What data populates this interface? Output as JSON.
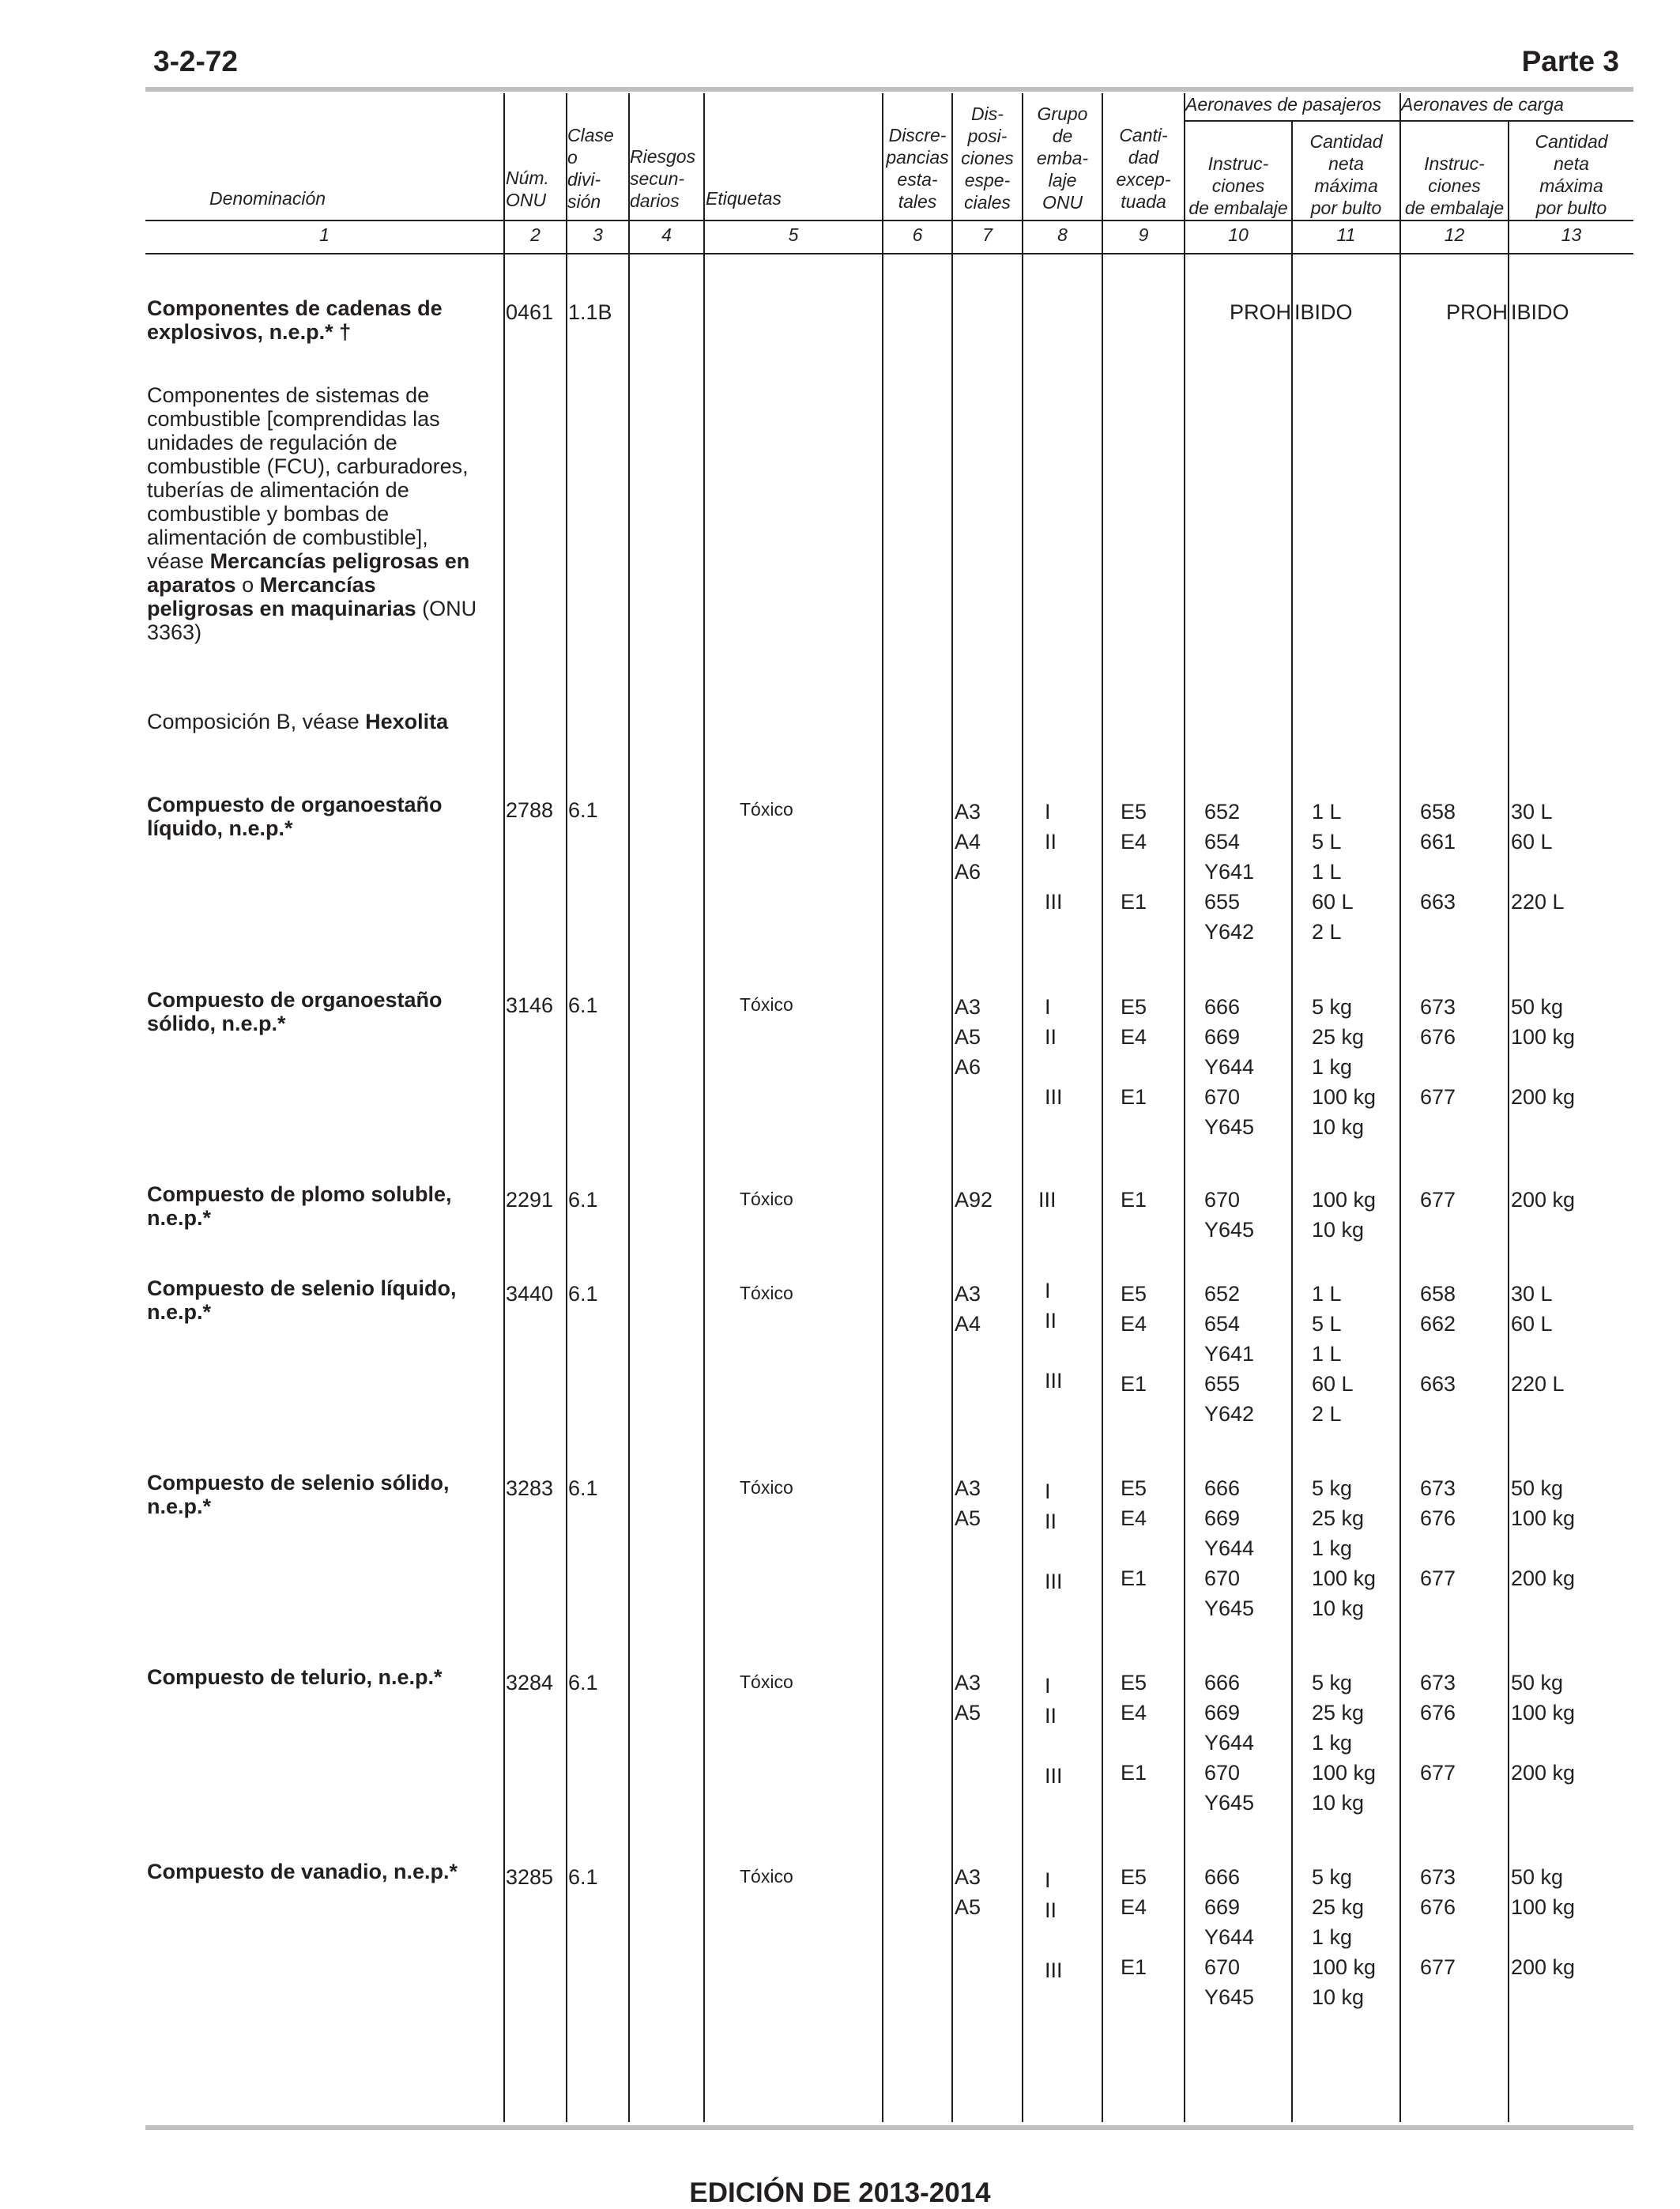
{
  "header": {
    "page_number": "3-2-72",
    "part": "Parte 3"
  },
  "columns": {
    "denominacion": "Denominación",
    "num_onu": [
      "Núm.",
      "ONU"
    ],
    "clase": [
      "Clase",
      "o",
      "divi-",
      "sión"
    ],
    "riesgos": [
      "Riesgos",
      "secun-",
      "darios"
    ],
    "etiquetas": "Etiquetas",
    "discrepancias": [
      "Discre-",
      "pancias",
      "esta-",
      "tales"
    ],
    "disposiciones": [
      "Dis-",
      "posi-",
      "ciones",
      "espe-",
      "ciales"
    ],
    "grupo": [
      "Grupo",
      "de",
      "emba-",
      "laje",
      "ONU"
    ],
    "cantidad_exceptuada": [
      "Canti-",
      "dad",
      "excep-",
      "tuada"
    ],
    "pasajeros_group": "Aeronaves de pasajeros",
    "carga_group": "Aeronaves de carga",
    "instrucciones": [
      "Instruc-",
      "ciones",
      "de embalaje"
    ],
    "cantidad_neta": [
      "Cantidad",
      "neta",
      "máxima",
      "por bulto"
    ],
    "numbers": [
      "1",
      "2",
      "3",
      "4",
      "5",
      "6",
      "7",
      "8",
      "9",
      "10",
      "11",
      "12",
      "13"
    ]
  },
  "entries": {
    "e1": {
      "name": "Componentes de cadenas de explosivos, n.e.p.* †",
      "un": "0461",
      "class": "1.1B",
      "pass_left": "PROH",
      "pass_right": "IBIDO",
      "cargo_left": "PROH",
      "cargo_right": "IBIDO"
    },
    "e2": {
      "t1": "Componentes de sistemas de combustible [comprendidas las unidades de regulación de combustible (FCU), carburadores, tuberías de alimentación de combustible y bombas de alimentación de combustible], véase ",
      "b1": "Mercancías peligrosas en aparatos",
      "t2": " o ",
      "b2": "Mercancías peligrosas en maquinarias",
      "t3": " (ONU 3363)"
    },
    "e3": {
      "t1": "Composición B, véase ",
      "b1": "Hexolita"
    },
    "e4": {
      "name": "Compuesto de organoestaño líquido, n.e.p.*",
      "un": "2788",
      "class": "6.1",
      "label": "Tóxico",
      "sp": "A3\nA4\nA6",
      "pg": "I\nII\n\nIII",
      "eq": "E5\nE4\n\nE1",
      "pi": "652\n654\nY641\n655\nY642",
      "qty": "1 L\n5 L\n1 L\n60 L\n2 L",
      "cpi": "658\n661\n\n663",
      "cqty": "30 L\n60 L\n\n220 L"
    },
    "e5": {
      "name": "Compuesto de organoestaño sólido, n.e.p.*",
      "un": "3146",
      "class": "6.1",
      "label": "Tóxico",
      "sp": "A3\nA5\nA6",
      "pg": "I\nII\n\nIII",
      "eq": "E5\nE4\n\nE1",
      "pi": "666\n669\nY644\n670\nY645",
      "qty": "5 kg\n25 kg\n1 kg\n100 kg\n10 kg",
      "cpi": "673\n676\n\n677",
      "cqty": "50 kg\n100 kg\n\n200 kg"
    },
    "e6": {
      "name": "Compuesto de plomo soluble, n.e.p.*",
      "un": "2291",
      "class": "6.1",
      "label": "Tóxico",
      "sp": "A92",
      "pg": "III",
      "eq": "E1",
      "pi": "670\nY645",
      "qty": "100 kg\n10 kg",
      "cpi": "677",
      "cqty": "200 kg"
    },
    "e7": {
      "name": "Compuesto de selenio líquido, n.e.p.*",
      "un": "3440",
      "class": "6.1",
      "label": "Tóxico",
      "sp": "A3\nA4",
      "pg": "I\nII\n\nIII",
      "eq": "E5\nE4\n\nE1",
      "pi": "652\n654\nY641\n655\nY642",
      "qty": "1 L\n5 L\n1 L\n60 L\n2 L",
      "cpi": "658\n662\n\n663",
      "cqty": "30 L\n60 L\n\n220 L"
    },
    "e8": {
      "name": "Compuesto de selenio sólido, n.e.p.*",
      "un": "3283",
      "class": "6.1",
      "label": "Tóxico",
      "sp": "A3\nA5",
      "pg": "I\nII\n\nIII",
      "eq": "E5\nE4\n\nE1",
      "pi": "666\n669\nY644\n670\nY645",
      "qty": "5 kg\n25 kg\n1 kg\n100 kg\n10 kg",
      "cpi": "673\n676\n\n677",
      "cqty": "50 kg\n100 kg\n\n200 kg"
    },
    "e9": {
      "name": "Compuesto de telurio, n.e.p.*",
      "un": "3284",
      "class": "6.1",
      "label": "Tóxico",
      "sp": "A3\nA5",
      "pg": "I\nII\n\nIII",
      "eq": "E5\nE4\n\nE1",
      "pi": "666\n669\nY644\n670\nY645",
      "qty": "5 kg\n25 kg\n1 kg\n100 kg\n10 kg",
      "cpi": "673\n676\n\n677",
      "cqty": "50 kg\n100 kg\n\n200 kg"
    },
    "e10": {
      "name": "Compuesto de vanadio, n.e.p.*",
      "un": "3285",
      "class": "6.1",
      "label": "Tóxico",
      "sp": "A3\nA5",
      "pg": "I\nII\n\nIII",
      "eq": "E5\nE4\n\nE1",
      "pi": "666\n669\nY644\n670\nY645",
      "qty": "5 kg\n25 kg\n1 kg\n100 kg\n10 kg",
      "cpi": "673\n676\n\n677",
      "cqty": "50 kg\n100 kg\n\n200 kg"
    }
  },
  "footer": "EDICIÓN DE 2013-2014"
}
